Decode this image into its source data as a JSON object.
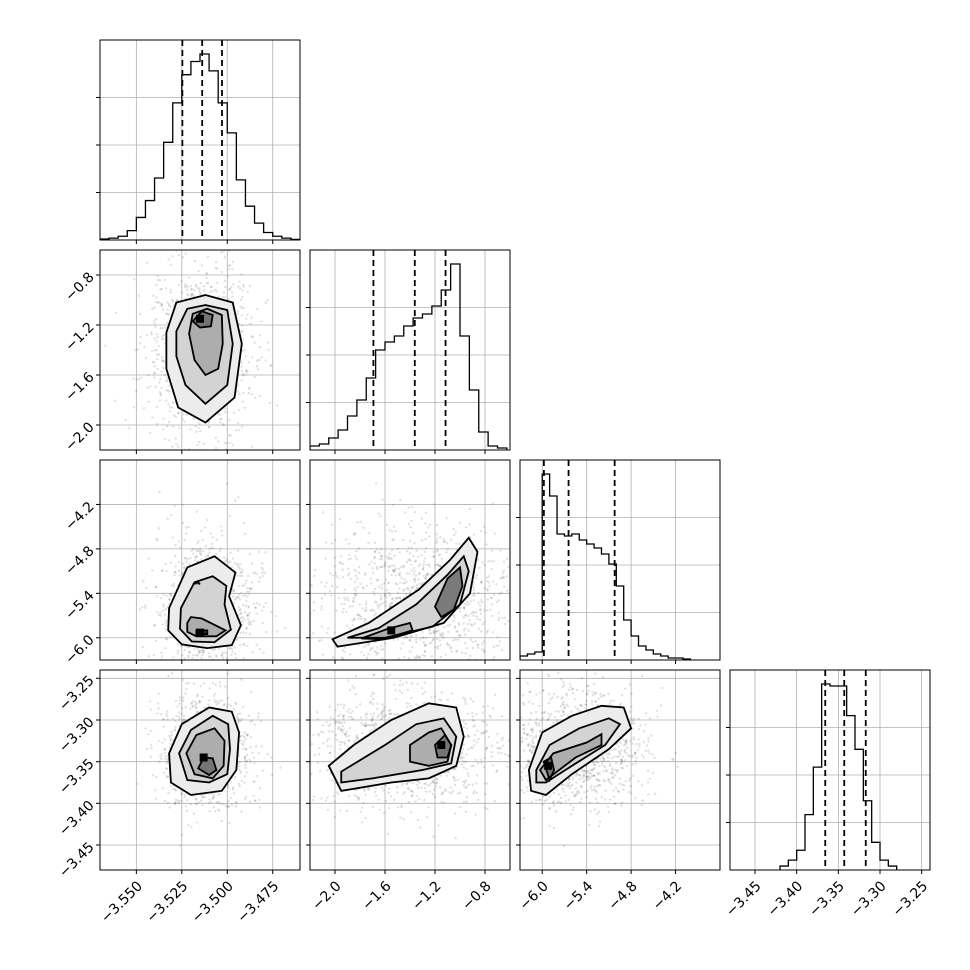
{
  "chart_data": {
    "type": "corner",
    "title": "",
    "parameters": [
      {
        "index": 0,
        "range": [
          -3.57,
          -3.46
        ],
        "ticks": [
          -3.55,
          -3.525,
          -3.5,
          -3.475
        ],
        "tick_labels": [
          "−3.550",
          "−3.525",
          "−3.500",
          "−3.475"
        ]
      },
      {
        "index": 1,
        "range": [
          -2.2,
          -0.6
        ],
        "ticks": [
          -2.0,
          -1.6,
          -1.2,
          -0.8
        ],
        "tick_labels": [
          "−2.0",
          "−1.6",
          "−1.2",
          "−0.8"
        ]
      },
      {
        "index": 2,
        "range": [
          -6.3,
          -3.6
        ],
        "ticks": [
          -6.0,
          -5.4,
          -4.8,
          -4.2
        ],
        "tick_labels": [
          "−6.0",
          "−5.4",
          "−4.8",
          "−4.2"
        ]
      },
      {
        "index": 3,
        "range": [
          -3.48,
          -3.24
        ],
        "ticks": [
          -3.45,
          -3.4,
          -3.35,
          -3.3,
          -3.25
        ],
        "tick_labels": [
          "−3.45",
          "−3.40",
          "−3.35",
          "−3.30",
          "−3.25"
        ]
      }
    ],
    "histograms": [
      {
        "param": 0,
        "bin_edges": [
          -3.57,
          -3.565,
          -3.56,
          -3.555,
          -3.55,
          -3.545,
          -3.54,
          -3.535,
          -3.53,
          -3.525,
          -3.52,
          -3.515,
          -3.51,
          -3.505,
          -3.5,
          -3.495,
          -3.49,
          -3.485,
          -3.48,
          -3.475,
          -3.47,
          -3.465,
          -3.46
        ],
        "counts": [
          0.005,
          0.01,
          0.02,
          0.05,
          0.12,
          0.21,
          0.33,
          0.52,
          0.73,
          0.88,
          0.95,
          0.99,
          0.9,
          0.73,
          0.57,
          0.32,
          0.18,
          0.09,
          0.04,
          0.02,
          0.01,
          0.003
        ],
        "quantiles": [
          -3.5247,
          -3.5138,
          -3.5029
        ]
      },
      {
        "param": 1,
        "bin_edges": [
          -2.2,
          -2.125,
          -2.05,
          -1.975,
          -1.9,
          -1.825,
          -1.75,
          -1.675,
          -1.6,
          -1.525,
          -1.45,
          -1.375,
          -1.3,
          -1.225,
          -1.15,
          -1.075,
          -1.0,
          -0.925,
          -0.85,
          -0.775,
          -0.7,
          -0.625
        ],
        "counts": [
          0.02,
          0.03,
          0.06,
          0.1,
          0.17,
          0.25,
          0.36,
          0.5,
          0.54,
          0.57,
          0.62,
          0.66,
          0.68,
          0.72,
          0.8,
          0.93,
          0.57,
          0.3,
          0.09,
          0.02,
          0.01
        ],
        "quantiles": [
          -1.6926,
          -1.3617,
          -1.1156
        ]
      },
      {
        "param": 2,
        "bin_edges": [
          -6.3,
          -6.2,
          -6.1,
          -6.0,
          -5.9,
          -5.8,
          -5.7,
          -5.6,
          -5.5,
          -5.4,
          -5.3,
          -5.2,
          -5.1,
          -5.0,
          -4.9,
          -4.8,
          -4.7,
          -4.6,
          -4.5,
          -4.4,
          -4.3,
          -4.2,
          -4.1,
          -4.0
        ],
        "counts": [
          0.02,
          0.03,
          0.04,
          0.93,
          0.82,
          0.63,
          0.62,
          0.63,
          0.6,
          0.58,
          0.56,
          0.53,
          0.48,
          0.37,
          0.2,
          0.12,
          0.07,
          0.05,
          0.03,
          0.02,
          0.01,
          0.01,
          0.005
        ],
        "quantiles": [
          -5.9778,
          -5.6444,
          -5.0222
        ]
      },
      {
        "param": 3,
        "bin_edges": [
          -3.42,
          -3.41,
          -3.4,
          -3.39,
          -3.38,
          -3.37,
          -3.36,
          -3.35,
          -3.34,
          -3.33,
          -3.32,
          -3.31,
          -3.3,
          -3.29,
          -3.28
        ],
        "counts": [
          0.02,
          0.05,
          0.1,
          0.28,
          0.52,
          0.94,
          0.93,
          0.93,
          0.78,
          0.61,
          0.35,
          0.14,
          0.05,
          0.02
        ],
        "quantiles": [
          -3.3657,
          -3.3429,
          -3.3171
        ]
      }
    ],
    "pairs": [
      {
        "x_param": 0,
        "y_param": 1,
        "mode": [
          -3.515,
          -1.15
        ],
        "levels": [
          [
            [
              -3.5335,
              -1.26
            ],
            [
              -3.528,
              -1.02
            ],
            [
              -3.512,
              -0.96
            ],
            [
              -3.497,
              -1.02
            ],
            [
              -3.492,
              -1.35
            ],
            [
              -3.496,
              -1.78
            ],
            [
              -3.512,
              -1.98
            ],
            [
              -3.527,
              -1.86
            ],
            [
              -3.5335,
              -1.55
            ]
          ],
          [
            [
              -3.528,
              -1.25
            ],
            [
              -3.522,
              -1.07
            ],
            [
              -3.512,
              -1.04
            ],
            [
              -3.5,
              -1.08
            ],
            [
              -3.497,
              -1.35
            ],
            [
              -3.5,
              -1.68
            ],
            [
              -3.512,
              -1.83
            ],
            [
              -3.523,
              -1.68
            ],
            [
              -3.528,
              -1.45
            ]
          ],
          [
            [
              -3.521,
              -1.27
            ],
            [
              -3.519,
              -1.11
            ],
            [
              -3.511,
              -1.07
            ],
            [
              -3.503,
              -1.12
            ],
            [
              -3.5025,
              -1.35
            ],
            [
              -3.505,
              -1.55
            ],
            [
              -3.512,
              -1.6
            ],
            [
              -3.518,
              -1.48
            ]
          ],
          [
            [
              -3.519,
              -1.17
            ],
            [
              -3.514,
              -1.09
            ],
            [
              -3.508,
              -1.12
            ],
            [
              -3.509,
              -1.21
            ],
            [
              -3.515,
              -1.22
            ]
          ]
        ]
      },
      {
        "x_param": 0,
        "y_param": 2,
        "mode": [
          -3.515,
          -5.93
        ],
        "levels": [
          [
            [
              -3.532,
              -5.6
            ],
            [
              -3.522,
              -5.05
            ],
            [
              -3.507,
              -4.9
            ],
            [
              -3.4955,
              -5.12
            ],
            [
              -3.499,
              -5.44
            ],
            [
              -3.4925,
              -5.83
            ],
            [
              -3.4975,
              -6.1
            ],
            [
              -3.511,
              -6.14
            ],
            [
              -3.525,
              -6.09
            ],
            [
              -3.5325,
              -5.9
            ]
          ],
          [
            [
              -3.5255,
              -5.6
            ],
            [
              -3.518,
              -5.25
            ],
            [
              -3.508,
              -5.17
            ],
            [
              -3.5005,
              -5.3
            ],
            [
              -3.5015,
              -5.55
            ],
            [
              -3.498,
              -5.89
            ],
            [
              -3.507,
              -6.06
            ],
            [
              -3.5195,
              -6.05
            ],
            [
              -3.526,
              -5.88
            ]
          ],
          [
            [
              -3.522,
              -5.8
            ],
            [
              -3.52,
              -5.72
            ],
            [
              -3.514,
              -5.74
            ],
            [
              -3.501,
              -5.9
            ],
            [
              -3.506,
              -5.98
            ],
            [
              -3.517,
              -5.98
            ],
            [
              -3.522,
              -5.92
            ]
          ],
          [
            [
              -3.519,
              -5.28
            ],
            [
              -3.516,
              -5.25
            ],
            [
              -3.515,
              -5.28
            ]
          ],
          [
            [
              -3.517,
              -5.9
            ],
            [
              -3.511,
              -5.9
            ],
            [
              -3.511,
              -5.95
            ],
            [
              -3.517,
              -5.95
            ]
          ]
        ]
      },
      {
        "x_param": 1,
        "y_param": 2,
        "mode": [
          -1.55,
          -5.9
        ],
        "levels": [
          [
            [
              -2.02,
              -6.02
            ],
            [
              -1.73,
              -5.8
            ],
            [
              -1.33,
              -5.35
            ],
            [
              -1.08,
              -4.95
            ],
            [
              -0.93,
              -4.65
            ],
            [
              -0.86,
              -4.84
            ],
            [
              -0.92,
              -5.4
            ],
            [
              -1.13,
              -5.8
            ],
            [
              -1.53,
              -6.0
            ],
            [
              -1.98,
              -6.12
            ]
          ],
          [
            [
              -1.9,
              -6.0
            ],
            [
              -1.65,
              -5.87
            ],
            [
              -1.35,
              -5.55
            ],
            [
              -1.1,
              -5.15
            ],
            [
              -0.97,
              -4.9
            ],
            [
              -0.93,
              -5.1
            ],
            [
              -1.0,
              -5.55
            ],
            [
              -1.22,
              -5.85
            ],
            [
              -1.6,
              -6.0
            ]
          ],
          [
            [
              -1.79,
              -6.01
            ],
            [
              -1.58,
              -5.88
            ],
            [
              -1.4,
              -5.8
            ],
            [
              -1.38,
              -5.9
            ],
            [
              -1.62,
              -6.02
            ]
          ],
          [
            [
              -1.2,
              -5.58
            ],
            [
              -1.1,
              -5.2
            ],
            [
              -1.0,
              -5.05
            ],
            [
              -0.98,
              -5.3
            ],
            [
              -1.05,
              -5.62
            ],
            [
              -1.15,
              -5.72
            ]
          ]
        ]
      },
      {
        "x_param": 0,
        "y_param": 3,
        "mode": [
          -3.513,
          -3.345
        ],
        "levels": [
          [
            [
              -3.532,
              -3.34
            ],
            [
              -3.525,
              -3.305
            ],
            [
              -3.51,
              -3.285
            ],
            [
              -3.4975,
              -3.29
            ],
            [
              -3.4935,
              -3.315
            ],
            [
              -3.495,
              -3.36
            ],
            [
              -3.503,
              -3.385
            ],
            [
              -3.52,
              -3.39
            ],
            [
              -3.531,
              -3.375
            ]
          ],
          [
            [
              -3.5265,
              -3.34
            ],
            [
              -3.52,
              -3.312
            ],
            [
              -3.508,
              -3.295
            ],
            [
              -3.4995,
              -3.305
            ],
            [
              -3.4985,
              -3.335
            ],
            [
              -3.5,
              -3.365
            ],
            [
              -3.51,
              -3.375
            ],
            [
              -3.522,
              -3.372
            ]
          ],
          [
            [
              -3.5225,
              -3.34
            ],
            [
              -3.517,
              -3.318
            ],
            [
              -3.507,
              -3.31
            ],
            [
              -3.5015,
              -3.325
            ],
            [
              -3.502,
              -3.355
            ],
            [
              -3.508,
              -3.37
            ],
            [
              -3.518,
              -3.365
            ]
          ],
          [
            [
              -3.516,
              -3.358
            ],
            [
              -3.513,
              -3.345
            ],
            [
              -3.508,
              -3.346
            ],
            [
              -3.506,
              -3.36
            ],
            [
              -3.51,
              -3.366
            ]
          ]
        ]
      },
      {
        "x_param": 1,
        "y_param": 3,
        "mode": [
          -1.15,
          -3.33
        ],
        "levels": [
          [
            [
              -2.05,
              -3.355
            ],
            [
              -1.85,
              -3.33
            ],
            [
              -1.55,
              -3.3
            ],
            [
              -1.25,
              -3.28
            ],
            [
              -1.03,
              -3.285
            ],
            [
              -0.97,
              -3.32
            ],
            [
              -1.03,
              -3.355
            ],
            [
              -1.25,
              -3.37
            ],
            [
              -1.55,
              -3.375
            ],
            [
              -1.95,
              -3.385
            ]
          ],
          [
            [
              -1.95,
              -3.362
            ],
            [
              -1.6,
              -3.33
            ],
            [
              -1.35,
              -3.305
            ],
            [
              -1.13,
              -3.298
            ],
            [
              -1.03,
              -3.32
            ],
            [
              -1.07,
              -3.352
            ],
            [
              -1.3,
              -3.36
            ],
            [
              -1.7,
              -3.37
            ],
            [
              -1.95,
              -3.375
            ]
          ],
          [
            [
              -1.4,
              -3.33
            ],
            [
              -1.25,
              -3.315
            ],
            [
              -1.15,
              -3.31
            ],
            [
              -1.07,
              -3.33
            ],
            [
              -1.1,
              -3.35
            ],
            [
              -1.25,
              -3.355
            ],
            [
              -1.4,
              -3.35
            ]
          ],
          [
            [
              -1.2,
              -3.33
            ],
            [
              -1.12,
              -3.318
            ],
            [
              -1.07,
              -3.33
            ],
            [
              -1.1,
              -3.345
            ],
            [
              -1.18,
              -3.345
            ]
          ]
        ]
      },
      {
        "x_param": 2,
        "y_param": 3,
        "mode": [
          -5.92,
          -3.355
        ],
        "levels": [
          [
            [
              -6.18,
              -3.36
            ],
            [
              -6.0,
              -3.315
            ],
            [
              -5.6,
              -3.295
            ],
            [
              -5.2,
              -3.283
            ],
            [
              -4.9,
              -3.285
            ],
            [
              -4.8,
              -3.31
            ],
            [
              -5.1,
              -3.335
            ],
            [
              -5.6,
              -3.365
            ],
            [
              -5.95,
              -3.39
            ],
            [
              -6.15,
              -3.385
            ]
          ],
          [
            [
              -6.08,
              -3.36
            ],
            [
              -5.9,
              -3.33
            ],
            [
              -5.5,
              -3.31
            ],
            [
              -5.1,
              -3.298
            ],
            [
              -4.95,
              -3.305
            ],
            [
              -5.15,
              -3.33
            ],
            [
              -5.6,
              -3.355
            ],
            [
              -5.95,
              -3.375
            ],
            [
              -6.08,
              -3.375
            ]
          ],
          [
            [
              -6.03,
              -3.36
            ],
            [
              -5.85,
              -3.34
            ],
            [
              -5.4,
              -3.327
            ],
            [
              -5.2,
              -3.317
            ],
            [
              -5.2,
              -3.33
            ],
            [
              -5.55,
              -3.345
            ],
            [
              -5.95,
              -3.372
            ]
          ],
          [
            [
              -5.98,
              -3.35
            ],
            [
              -5.88,
              -3.345
            ],
            [
              -5.84,
              -3.36
            ],
            [
              -5.9,
              -3.372
            ]
          ]
        ]
      }
    ],
    "grid": true,
    "scatter_points_shown": true,
    "dashed_quantile_lines": [
      0.16,
      0.5,
      0.84
    ]
  }
}
